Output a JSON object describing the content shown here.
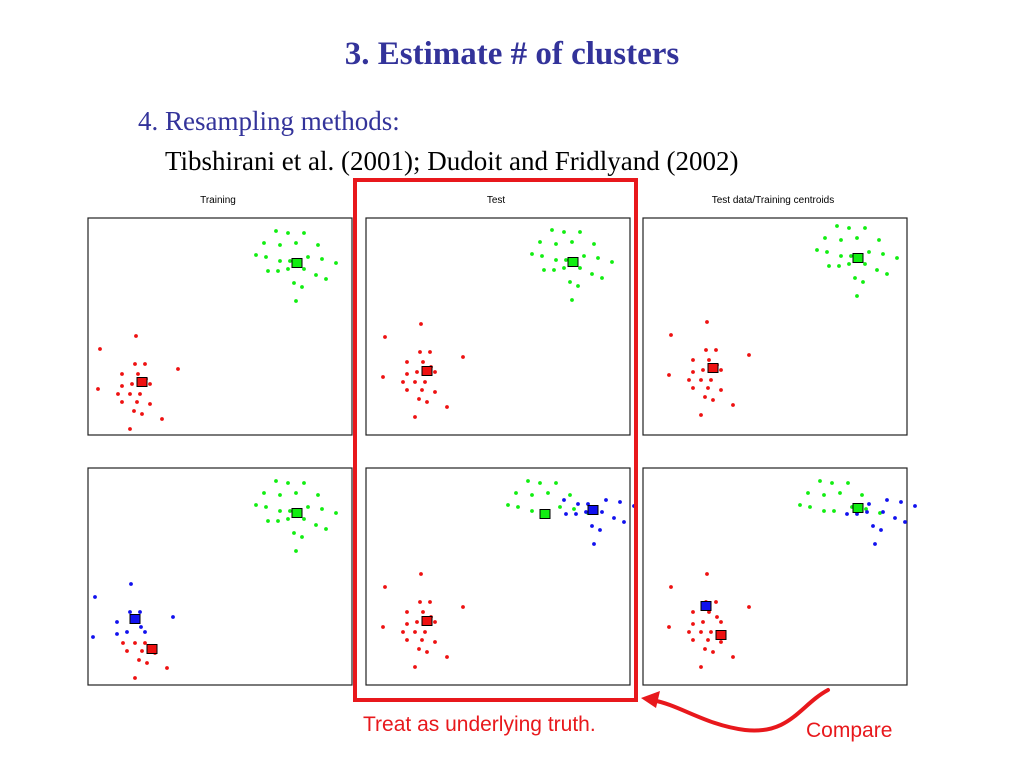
{
  "slide": {
    "title": "3. Estimate # of clusters",
    "subtitle": "4. Resampling methods:",
    "references": "Tibshirani et al. (2001); Dudoit and Fridlyand (2002)"
  },
  "panels": {
    "titles": [
      "Training",
      "Test",
      "Test data/Training centroids"
    ]
  },
  "annotations": {
    "truth_label": "Treat as underlying truth.",
    "compare_label": "Compare"
  },
  "colors": {
    "title": "#33339a",
    "highlight": "#e8181c",
    "cluster_red": "#ee1111",
    "cluster_green": "#11ee11",
    "cluster_blue": "#1111ee"
  },
  "icons": [
    "curved-arrow-icon"
  ]
}
